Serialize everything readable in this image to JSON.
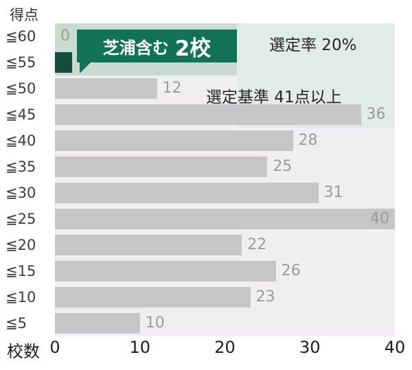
{
  "axes": {
    "y_title": "得点",
    "x_title": "校数"
  },
  "annotations": {
    "selection_rate": "選定率 20%",
    "criterion": "選定基準 41点以上",
    "callout": {
      "prefix": "芝浦含む",
      "value": "2校"
    }
  },
  "colors": {
    "plot_bg": "#f0eef0",
    "bar": "#c6c5c7",
    "highlight_bar": "#174d3e",
    "region_dark_green": "#c9dbcf",
    "region_light_green": "#e2ece6",
    "callout_bg": "#117257",
    "value_label": "#9b9b9b"
  },
  "chart_data": {
    "type": "bar",
    "orientation": "horizontal",
    "title": "",
    "xlabel": "校数",
    "ylabel": "得点",
    "categories": [
      "≦60",
      "≦55",
      "≦50",
      "≦45",
      "≦40",
      "≦35",
      "≦30",
      "≦25",
      "≦20",
      "≦15",
      "≦10",
      "≦5"
    ],
    "values": [
      0,
      2,
      12,
      36,
      28,
      25,
      31,
      40,
      22,
      26,
      23,
      10
    ],
    "highlight_index": 1,
    "highlight_label": "芝浦含む 2校",
    "xlim": [
      0,
      40
    ],
    "xticks": [
      0,
      10,
      20,
      30,
      40
    ],
    "annotations": [
      "選定率 20%",
      "選定基準 41点以上"
    ],
    "legend": false,
    "grid": false
  }
}
